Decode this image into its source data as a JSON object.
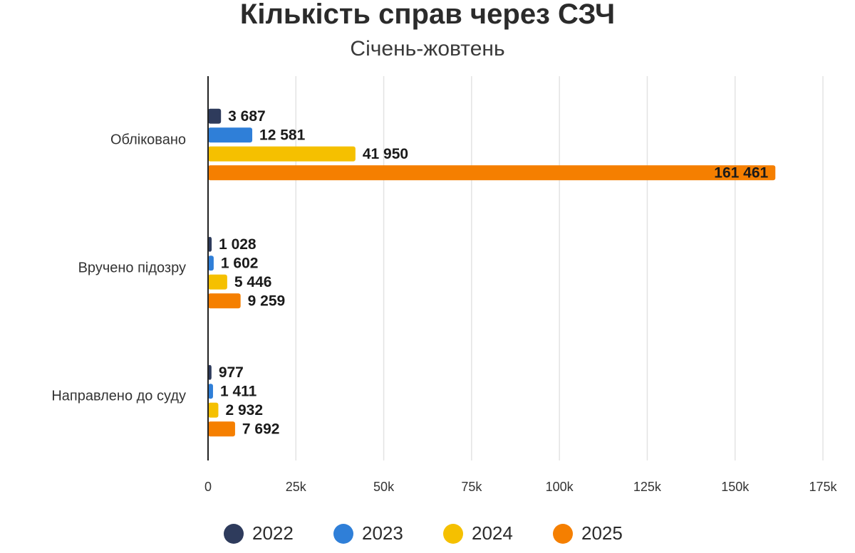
{
  "chart_data": {
    "type": "bar",
    "orientation": "horizontal",
    "title": "Кількість справ через СЗЧ",
    "subtitle": "Січень-жовтень",
    "categories": [
      "Обліковано",
      "Вручено підозру",
      "Направлено до суду"
    ],
    "series": [
      {
        "name": "2022",
        "color": "#2e3b5c",
        "values": [
          3687,
          1028,
          977
        ],
        "labels": [
          "3 687",
          "1 028",
          "977"
        ]
      },
      {
        "name": "2023",
        "color": "#2f7fd8",
        "values": [
          12581,
          1602,
          1411
        ],
        "labels": [
          "12 581",
          "1 602",
          "1 411"
        ]
      },
      {
        "name": "2024",
        "color": "#f5c000",
        "values": [
          41950,
          5446,
          2932
        ],
        "labels": [
          "41 950",
          "5 446",
          "2 932"
        ]
      },
      {
        "name": "2025",
        "color": "#f57f00",
        "values": [
          161461,
          9259,
          7692
        ],
        "labels": [
          "161 461",
          "9 259",
          "7 692"
        ]
      }
    ],
    "xlim": [
      0,
      175000
    ],
    "xticks": [
      {
        "value": 0,
        "label": "0"
      },
      {
        "value": 25000,
        "label": "25k"
      },
      {
        "value": 50000,
        "label": "50k"
      },
      {
        "value": 75000,
        "label": "75k"
      },
      {
        "value": 100000,
        "label": "100k"
      },
      {
        "value": 125000,
        "label": "125k"
      },
      {
        "value": 150000,
        "label": "150k"
      },
      {
        "value": 175000,
        "label": "175k"
      }
    ],
    "grid": true,
    "legend_position": "bottom"
  }
}
